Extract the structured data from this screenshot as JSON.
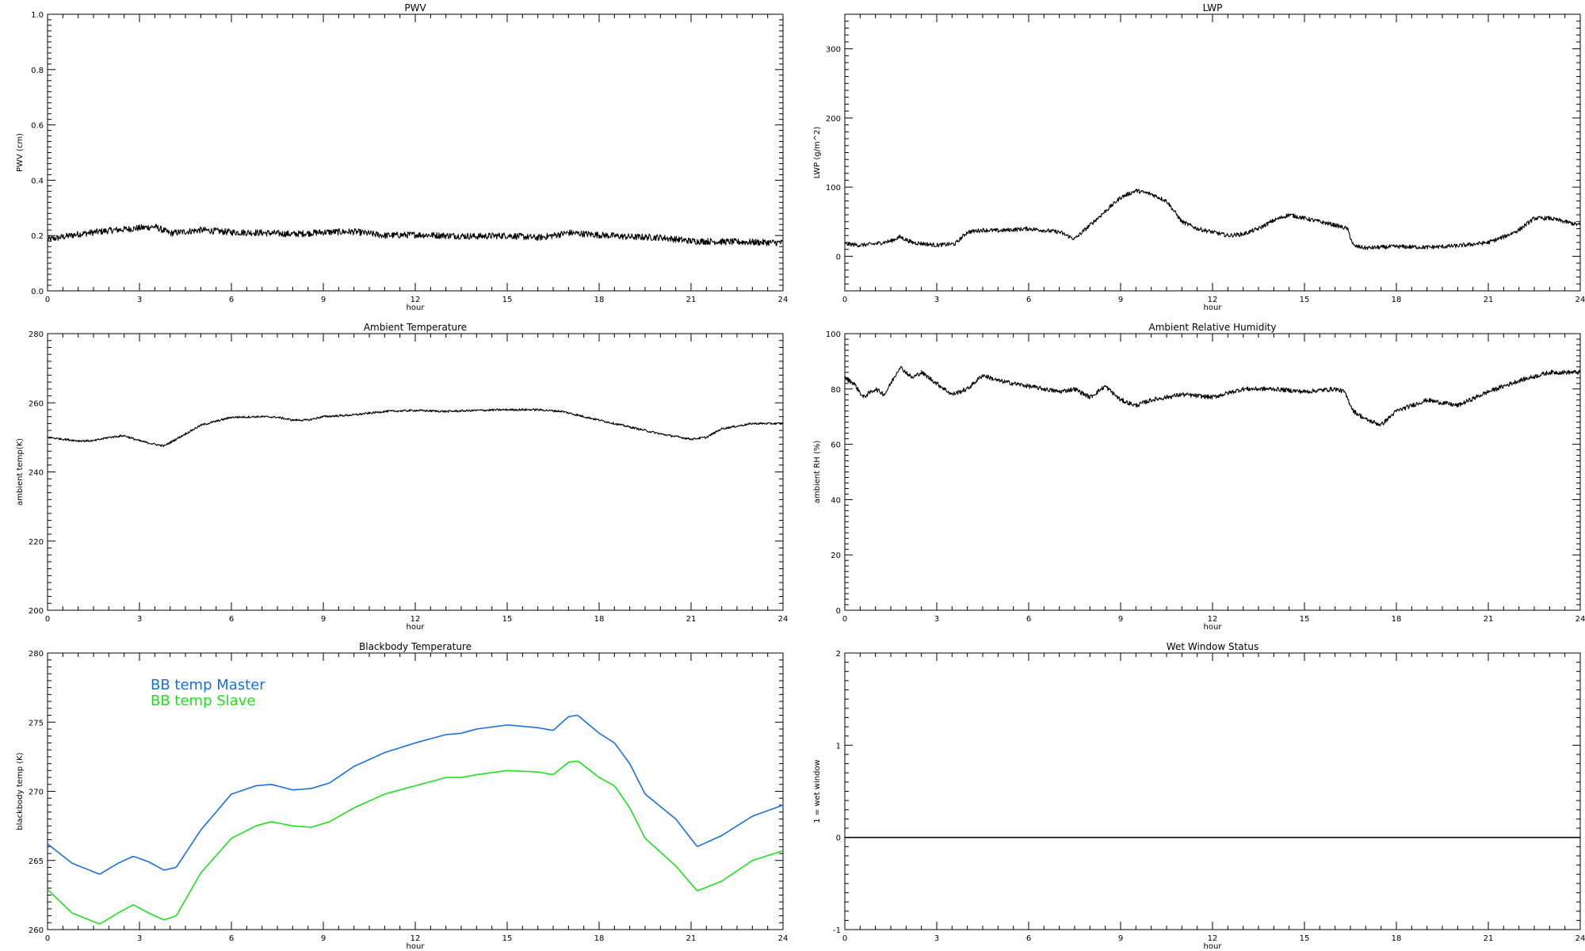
{
  "chart_data": [
    {
      "type": "line",
      "title": "PWV",
      "xlabel": "hour",
      "ylabel": "PWV (cm)",
      "xlim": [
        0,
        24
      ],
      "ylim": [
        0.0,
        1.0
      ],
      "xticks": [
        "0",
        "3",
        "6",
        "9",
        "12",
        "15",
        "18",
        "21",
        "24"
      ],
      "yticks": [
        "0.0",
        "0.2",
        "0.4",
        "0.6",
        "0.8",
        "1.0"
      ],
      "noise": 0.012,
      "series": [
        {
          "color": "#000000",
          "x": [
            0,
            1,
            2,
            3,
            3.5,
            4,
            5,
            6,
            7,
            8,
            9,
            10,
            11,
            12,
            13,
            14,
            15,
            16,
            16.5,
            17,
            18,
            19,
            20,
            21,
            22,
            23,
            24
          ],
          "values": [
            0.185,
            0.205,
            0.218,
            0.227,
            0.232,
            0.208,
            0.22,
            0.212,
            0.21,
            0.205,
            0.212,
            0.214,
            0.2,
            0.203,
            0.2,
            0.197,
            0.2,
            0.192,
            0.2,
            0.21,
            0.202,
            0.195,
            0.193,
            0.18,
            0.178,
            0.176,
            0.174
          ]
        }
      ]
    },
    {
      "type": "line",
      "title": "LWP",
      "xlabel": "hour",
      "ylabel": "LWP (g/m^2)",
      "xlim": [
        0,
        24
      ],
      "ylim": [
        -50,
        350
      ],
      "xticks": [
        "0",
        "3",
        "6",
        "9",
        "12",
        "15",
        "18",
        "21",
        "24"
      ],
      "yticks": [
        "0",
        "100",
        "200",
        "300"
      ],
      "noise": 3,
      "series": [
        {
          "color": "#000000",
          "x": [
            0,
            0.5,
            1,
            1.5,
            1.8,
            2.2,
            3,
            3.6,
            4,
            4.5,
            5,
            6,
            7,
            7.5,
            8,
            8.5,
            9,
            9.5,
            10,
            10.5,
            11,
            11.5,
            12,
            12.5,
            13,
            13.5,
            14,
            14.5,
            15,
            15.5,
            16,
            16.4,
            16.6,
            17,
            18,
            19,
            20,
            21,
            21.5,
            22,
            22.5,
            23,
            24
          ],
          "values": [
            18,
            16,
            18,
            22,
            28,
            20,
            16,
            18,
            35,
            38,
            37,
            40,
            35,
            25,
            45,
            65,
            85,
            95,
            90,
            80,
            50,
            40,
            35,
            30,
            32,
            40,
            52,
            60,
            55,
            50,
            45,
            40,
            15,
            12,
            14,
            13,
            15,
            20,
            28,
            38,
            55,
            55,
            45
          ]
        }
      ]
    },
    {
      "type": "line",
      "title": "Ambient Temperature",
      "xlabel": "hour",
      "ylabel": "ambient temp(K)",
      "xlim": [
        0,
        24
      ],
      "ylim": [
        200,
        280
      ],
      "xticks": [
        "0",
        "3",
        "6",
        "9",
        "12",
        "15",
        "18",
        "21",
        "24"
      ],
      "yticks": [
        "200",
        "220",
        "240",
        "260",
        "280"
      ],
      "noise": 0.3,
      "series": [
        {
          "color": "#000000",
          "x": [
            0,
            0.5,
            1,
            1.5,
            2,
            2.5,
            3,
            3.5,
            3.8,
            4.2,
            5,
            6,
            7,
            7.5,
            8,
            8.5,
            9,
            10,
            11,
            12,
            13,
            14,
            15,
            16,
            16.8,
            17.5,
            18,
            19,
            20,
            21,
            21.5,
            22,
            23,
            24
          ],
          "values": [
            250,
            249.5,
            249,
            249,
            250,
            250.5,
            249,
            248,
            247.5,
            249.5,
            253.5,
            255.8,
            256,
            255.8,
            255,
            255,
            256,
            256.5,
            257.5,
            257.8,
            257.5,
            257.8,
            258,
            258,
            257.5,
            256,
            255,
            253,
            251,
            249.5,
            250,
            252.5,
            254,
            254
          ]
        }
      ]
    },
    {
      "type": "line",
      "title": "Ambient Relative Humidity",
      "xlabel": "hour",
      "ylabel": "ambient RH (%)",
      "xlim": [
        0,
        24
      ],
      "ylim": [
        0,
        100
      ],
      "xticks": [
        "0",
        "3",
        "6",
        "9",
        "12",
        "15",
        "18",
        "21",
        "24"
      ],
      "yticks": [
        "0",
        "20",
        "40",
        "60",
        "80",
        "100"
      ],
      "noise": 0.8,
      "series": [
        {
          "color": "#000000",
          "x": [
            0,
            0.3,
            0.6,
            1,
            1.3,
            1.8,
            2.2,
            2.5,
            3,
            3.5,
            4,
            4.5,
            5,
            6,
            7,
            7.5,
            8,
            8.5,
            9,
            9.5,
            10,
            11,
            12,
            13,
            14,
            15,
            16,
            16.3,
            16.6,
            17,
            17.5,
            18,
            19,
            20,
            21,
            22,
            23,
            24
          ],
          "values": [
            84,
            82,
            77,
            80,
            78,
            88,
            84,
            86,
            82,
            78,
            80,
            85,
            83,
            81,
            79,
            80,
            77,
            81,
            76,
            74,
            76,
            78,
            77,
            80,
            80,
            79,
            80,
            79,
            72,
            69,
            67,
            72,
            76,
            74,
            79,
            83,
            86,
            86
          ]
        }
      ]
    },
    {
      "type": "line",
      "title": "Blackbody Temperature",
      "xlabel": "hour",
      "ylabel": "blackbody temp (K)",
      "xlim": [
        0,
        24
      ],
      "ylim": [
        260,
        280
      ],
      "xticks": [
        "0",
        "3",
        "6",
        "9",
        "12",
        "15",
        "18",
        "21",
        "24"
      ],
      "yticks": [
        "260",
        "265",
        "270",
        "275",
        "280"
      ],
      "noise": 0,
      "legend_position": "top-left",
      "series": [
        {
          "name": "BB temp Master",
          "color": "#1a6ee0",
          "x": [
            0,
            0.8,
            1.7,
            2.3,
            2.8,
            3.3,
            3.8,
            4.2,
            5,
            6,
            6.8,
            7.3,
            8,
            8.6,
            9.2,
            10,
            11,
            12,
            13,
            13.5,
            14,
            15,
            16,
            16.5,
            17,
            17.3,
            18,
            18.5,
            19,
            19.5,
            20.5,
            21.2,
            22,
            23,
            24
          ],
          "values": [
            266.2,
            264.8,
            264,
            264.8,
            265.3,
            264.9,
            264.3,
            264.5,
            267.2,
            269.8,
            270.4,
            270.5,
            270.1,
            270.2,
            270.6,
            271.8,
            272.8,
            273.5,
            274.1,
            274.2,
            274.5,
            274.8,
            274.6,
            274.4,
            275.4,
            275.5,
            274.2,
            273.5,
            272,
            269.8,
            268,
            266,
            266.8,
            268.2,
            269
          ]
        },
        {
          "name": "BB temp Slave",
          "color": "#1ee01e",
          "x": [
            0,
            0.8,
            1.7,
            2.3,
            2.8,
            3.3,
            3.8,
            4.2,
            5,
            6,
            6.8,
            7.3,
            8,
            8.6,
            9.2,
            10,
            11,
            12,
            13,
            13.5,
            14,
            15,
            16,
            16.5,
            17,
            17.3,
            18,
            18.5,
            19,
            19.5,
            20.5,
            21.2,
            22,
            23,
            24
          ],
          "values": [
            262.9,
            261.2,
            260.4,
            261.2,
            261.8,
            261.2,
            260.7,
            261,
            264.1,
            266.6,
            267.5,
            267.8,
            267.5,
            267.4,
            267.8,
            268.8,
            269.8,
            270.4,
            271,
            271,
            271.2,
            271.5,
            271.4,
            271.2,
            272.1,
            272.2,
            271,
            270.4,
            268.8,
            266.6,
            264.6,
            262.8,
            263.5,
            265,
            265.7
          ]
        }
      ]
    },
    {
      "type": "line",
      "title": "Wet Window Status",
      "xlabel": "hour",
      "ylabel": "1 = wet window",
      "xlim": [
        0,
        24
      ],
      "ylim": [
        -1,
        2
      ],
      "xticks": [
        "0",
        "3",
        "6",
        "9",
        "12",
        "15",
        "18",
        "21",
        "24"
      ],
      "yticks": [
        "-1",
        "0",
        "1",
        "2"
      ],
      "noise": 0,
      "series": [
        {
          "color": "#000000",
          "x": [
            0,
            24
          ],
          "values": [
            0,
            0
          ]
        }
      ]
    }
  ]
}
